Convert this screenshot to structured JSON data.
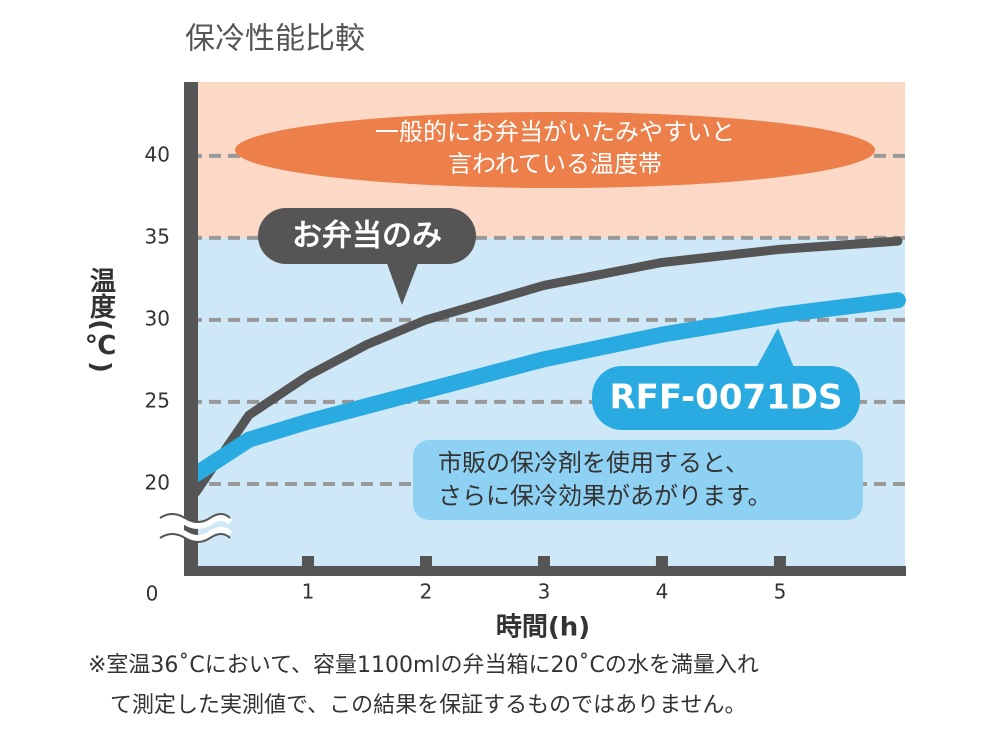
{
  "chart_data": {
    "type": "line",
    "title": "保冷性能比較",
    "ylabel": "温度(℃)",
    "xlabel": "時間(h)",
    "x_origin_label": "0",
    "xlim": [
      0,
      6.06
    ],
    "ylim": [
      15,
      44.5
    ],
    "xticks": [
      1,
      2,
      3,
      4,
      5
    ],
    "yticks": [
      20,
      25,
      30,
      35,
      40
    ],
    "grid": true,
    "bands": [
      {
        "from": 35,
        "to": 44.5,
        "color": "#fbd9c6"
      },
      {
        "from": 15,
        "to": 35,
        "color": "#cfe8f8"
      }
    ],
    "series": [
      {
        "name": "お弁当のみ",
        "color": "#555555",
        "x": [
          0.05,
          0.5,
          1,
          1.5,
          2,
          3,
          4,
          5,
          6
        ],
        "values": [
          19.5,
          24.2,
          26.6,
          28.5,
          30.0,
          32.1,
          33.5,
          34.3,
          34.8
        ]
      },
      {
        "name": "RFF-0071DS",
        "color": "#29abe2",
        "x": [
          0.05,
          0.5,
          1,
          2,
          3,
          4,
          5,
          6
        ],
        "values": [
          20.6,
          22.7,
          23.8,
          25.7,
          27.6,
          29.1,
          30.3,
          31.2
        ]
      }
    ],
    "annotations": {
      "danger_zone": [
        "一般的にお弁当がいたみやすいと",
        "言われている温度帯"
      ],
      "info": [
        "市販の保冷剤を使用すると、",
        "さらに保冷効果があがります。"
      ]
    },
    "note": [
      "※室温36˚Cにおいて、容量1100mlの弁当箱に20˚Cの水を満量入れ",
      "て測定した実測値で、この結果を保証するものではありません。"
    ]
  }
}
